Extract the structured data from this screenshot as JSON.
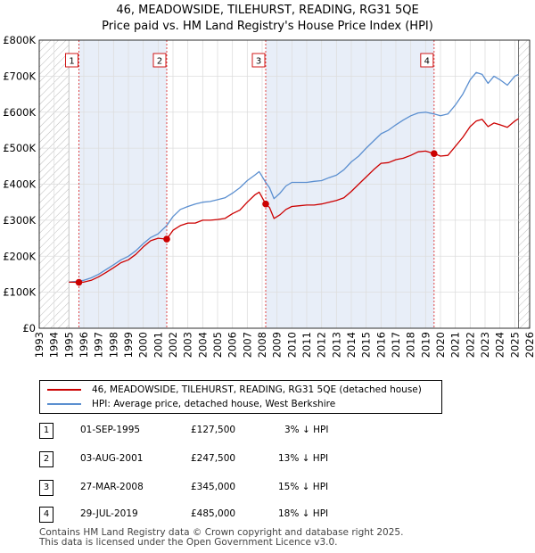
{
  "chart_data": {
    "type": "line",
    "title": "46, MEADOWSIDE, TILEHURST, READING, RG31 5QE",
    "subtitle": "Price paid vs. HM Land Registry's House Price Index (HPI)",
    "xlim": [
      1993,
      2026
    ],
    "ylim": [
      0,
      800000
    ],
    "x_ticks": [
      "1993",
      "1994",
      "1995",
      "1996",
      "1997",
      "1998",
      "1999",
      "2000",
      "2001",
      "2002",
      "2003",
      "2004",
      "2005",
      "2006",
      "2007",
      "2008",
      "2009",
      "2010",
      "2011",
      "2012",
      "2013",
      "2014",
      "2015",
      "2016",
      "2017",
      "2018",
      "2019",
      "2020",
      "2021",
      "2022",
      "2023",
      "2024",
      "2025",
      "2026"
    ],
    "y_ticks": [
      {
        "value": 0,
        "label": "£0"
      },
      {
        "value": 100000,
        "label": "£100K"
      },
      {
        "value": 200000,
        "label": "£200K"
      },
      {
        "value": 300000,
        "label": "£300K"
      },
      {
        "value": 400000,
        "label": "£400K"
      },
      {
        "value": 500000,
        "label": "£500K"
      },
      {
        "value": 600000,
        "label": "£600K"
      },
      {
        "value": 700000,
        "label": "£700K"
      },
      {
        "value": 800000,
        "label": "£800K"
      }
    ],
    "grid": true,
    "hatched_ranges": [
      [
        1993,
        1995.0
      ],
      [
        2025.25,
        2026
      ]
    ],
    "shaded_ranges": [
      [
        1995.67,
        2001.58
      ],
      [
        2008.24,
        2019.57
      ]
    ],
    "series": [
      {
        "name": "46, MEADOWSIDE, TILEHURST, READING, RG31 5QE (detached house)",
        "color": "#cc0000",
        "x": [
          1995.0,
          1995.67,
          1996.0,
          1996.5,
          1997.0,
          1997.5,
          1998.0,
          1998.5,
          1999.0,
          1999.5,
          2000.0,
          2000.5,
          2001.0,
          2001.58,
          2002.0,
          2002.5,
          2003.0,
          2003.5,
          2004.0,
          2004.5,
          2005.0,
          2005.5,
          2006.0,
          2006.5,
          2007.0,
          2007.5,
          2007.8,
          2008.24,
          2008.5,
          2008.8,
          2009.2,
          2009.6,
          2010.0,
          2010.5,
          2011.0,
          2011.5,
          2012.0,
          2012.5,
          2013.0,
          2013.5,
          2014.0,
          2014.5,
          2015.0,
          2015.5,
          2016.0,
          2016.5,
          2017.0,
          2017.5,
          2018.0,
          2018.5,
          2019.0,
          2019.57,
          2020.0,
          2020.5,
          2021.0,
          2021.5,
          2022.0,
          2022.4,
          2022.8,
          2023.2,
          2023.6,
          2024.0,
          2024.5,
          2025.0,
          2025.25
        ],
        "y": [
          128000,
          127500,
          128000,
          133000,
          143000,
          155000,
          168000,
          182000,
          190000,
          205000,
          226000,
          243000,
          250000,
          247500,
          272000,
          285000,
          292000,
          292000,
          300000,
          300000,
          302000,
          305000,
          318000,
          328000,
          350000,
          370000,
          378000,
          345000,
          335000,
          305000,
          315000,
          330000,
          338000,
          340000,
          342000,
          342000,
          345000,
          350000,
          355000,
          362000,
          380000,
          400000,
          420000,
          440000,
          458000,
          460000,
          468000,
          472000,
          480000,
          490000,
          492000,
          485000,
          478000,
          480000,
          505000,
          530000,
          560000,
          575000,
          580000,
          560000,
          570000,
          565000,
          558000,
          575000,
          582000
        ]
      },
      {
        "name": "HPI: Average price, detached house, West Berkshire",
        "color": "#5b8fd0",
        "x": [
          1995.0,
          1995.67,
          1996.0,
          1996.5,
          1997.0,
          1997.5,
          1998.0,
          1998.5,
          1999.0,
          1999.5,
          2000.0,
          2000.5,
          2001.0,
          2001.58,
          2002.0,
          2002.5,
          2003.0,
          2003.5,
          2004.0,
          2004.5,
          2005.0,
          2005.5,
          2006.0,
          2006.5,
          2007.0,
          2007.5,
          2007.8,
          2008.24,
          2008.5,
          2008.8,
          2009.2,
          2009.6,
          2010.0,
          2010.5,
          2011.0,
          2011.5,
          2012.0,
          2012.5,
          2013.0,
          2013.5,
          2014.0,
          2014.5,
          2015.0,
          2015.5,
          2016.0,
          2016.5,
          2017.0,
          2017.5,
          2018.0,
          2018.5,
          2019.0,
          2019.57,
          2020.0,
          2020.5,
          2021.0,
          2021.5,
          2022.0,
          2022.4,
          2022.8,
          2023.2,
          2023.6,
          2024.0,
          2024.5,
          2025.0,
          2025.25
        ],
        "y": [
          128000,
          131000,
          133000,
          140000,
          150000,
          163000,
          176000,
          190000,
          200000,
          215000,
          235000,
          252000,
          262000,
          285000,
          310000,
          330000,
          338000,
          345000,
          350000,
          352000,
          357000,
          362000,
          375000,
          390000,
          410000,
          425000,
          435000,
          405000,
          390000,
          360000,
          375000,
          395000,
          405000,
          405000,
          405000,
          408000,
          410000,
          418000,
          425000,
          440000,
          462000,
          478000,
          500000,
          520000,
          540000,
          550000,
          565000,
          578000,
          590000,
          598000,
          600000,
          595000,
          590000,
          595000,
          620000,
          650000,
          690000,
          710000,
          705000,
          680000,
          700000,
          690000,
          675000,
          700000,
          705000
        ]
      }
    ],
    "sales": [
      {
        "id": "1",
        "x": 1995.67,
        "price": 127500
      },
      {
        "id": "2",
        "x": 2001.58,
        "price": 247500
      },
      {
        "id": "3",
        "x": 2008.24,
        "price": 345000
      },
      {
        "id": "4",
        "x": 2019.57,
        "price": 485000
      }
    ]
  },
  "legend": {
    "property_label": "46, MEADOWSIDE, TILEHURST, READING, RG31 5QE (detached house)",
    "hpi_label": "HPI: Average price, detached house, West Berkshire"
  },
  "transactions": [
    {
      "num": "1",
      "date": "01-SEP-1995",
      "price": "£127,500",
      "hpi": "3% ↓ HPI"
    },
    {
      "num": "2",
      "date": "03-AUG-2001",
      "price": "£247,500",
      "hpi": "13% ↓ HPI"
    },
    {
      "num": "3",
      "date": "27-MAR-2008",
      "price": "£345,000",
      "hpi": "15% ↓ HPI"
    },
    {
      "num": "4",
      "date": "29-JUL-2019",
      "price": "£485,000",
      "hpi": "18% ↓ HPI"
    }
  ],
  "footer": {
    "line1": "Contains HM Land Registry data © Crown copyright and database right 2025.",
    "line2": "This data is licensed under the Open Government Licence v3.0."
  }
}
